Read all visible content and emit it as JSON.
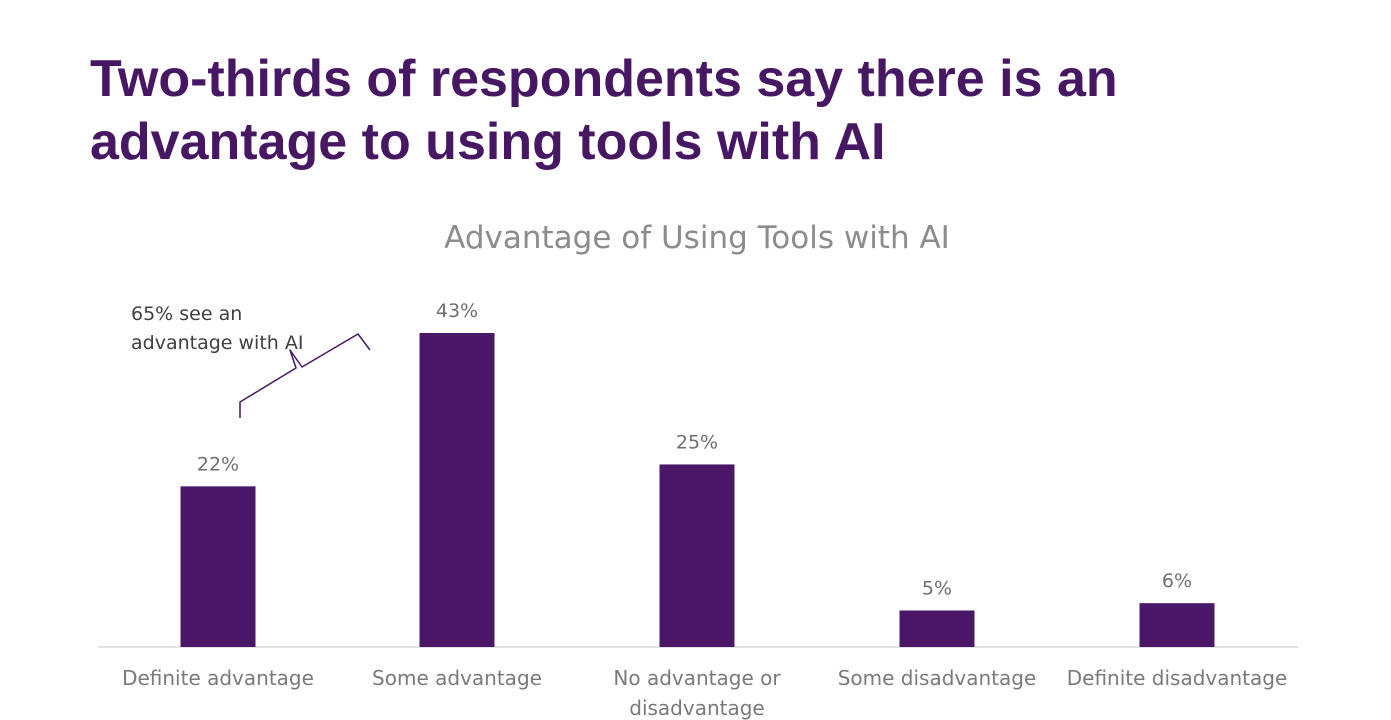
{
  "page": {
    "headline": "Two-thirds of respondents say there is an advantage to using tools with AI"
  },
  "chart_data": {
    "type": "bar",
    "title": "Advantage of Using Tools with AI",
    "categories": [
      [
        "Definite advantage"
      ],
      [
        "Some advantage"
      ],
      [
        "No advantage or",
        "disadvantage"
      ],
      [
        "Some disadvantage"
      ],
      [
        "Definite disadvantage"
      ]
    ],
    "values": [
      22,
      43,
      25,
      5,
      6
    ],
    "value_labels": [
      "22%",
      "43%",
      "25%",
      "5%",
      "6%"
    ],
    "value_unit": "%",
    "ylim": [
      0,
      43
    ],
    "grid": false,
    "legend": "none",
    "bar_color": "#4a1766",
    "annotation": {
      "lines": [
        "65% see an",
        "advantage with AI"
      ],
      "spans_categories": [
        0,
        1
      ]
    }
  }
}
